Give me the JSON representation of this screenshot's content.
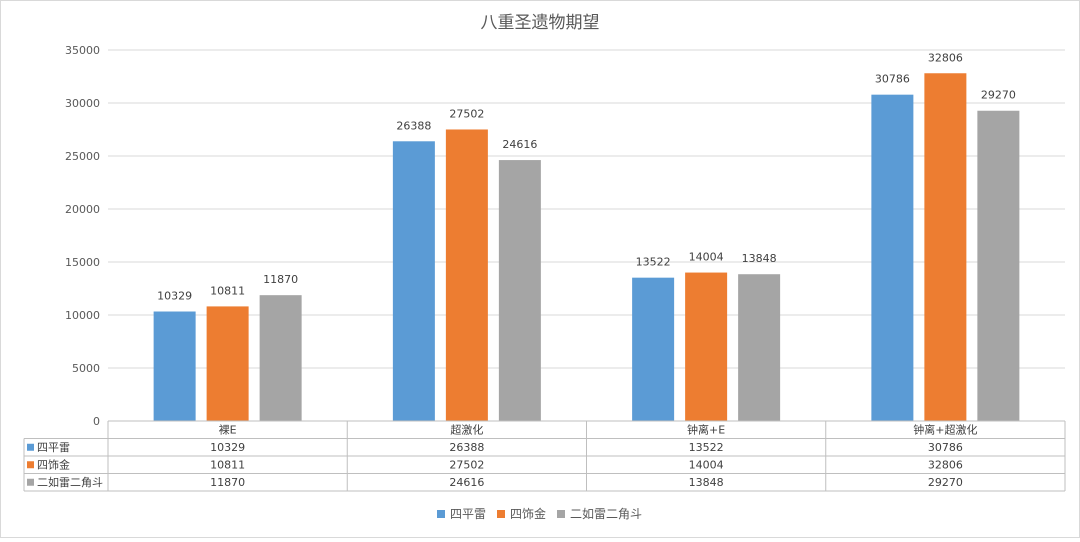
{
  "chart_data": {
    "type": "bar",
    "title": "八重圣遗物期望",
    "categories": [
      "裸E",
      "超激化",
      "钟离+E",
      "钟离+超激化"
    ],
    "series": [
      {
        "name": "四平雷",
        "color": "#5b9bd5",
        "values": [
          10329,
          26388,
          13522,
          30786
        ]
      },
      {
        "name": "四饰金",
        "color": "#ed7d31",
        "values": [
          10811,
          27502,
          14004,
          32806
        ]
      },
      {
        "name": "二如雷二角斗",
        "color": "#a5a5a5",
        "values": [
          11870,
          24616,
          13848,
          29270
        ]
      }
    ],
    "ylim": [
      0,
      35000
    ],
    "yticks": [
      0,
      5000,
      10000,
      15000,
      20000,
      25000,
      30000,
      35000
    ],
    "xlabel": "",
    "ylabel": "",
    "grid": true,
    "legend": "bottom",
    "data_table": true
  }
}
